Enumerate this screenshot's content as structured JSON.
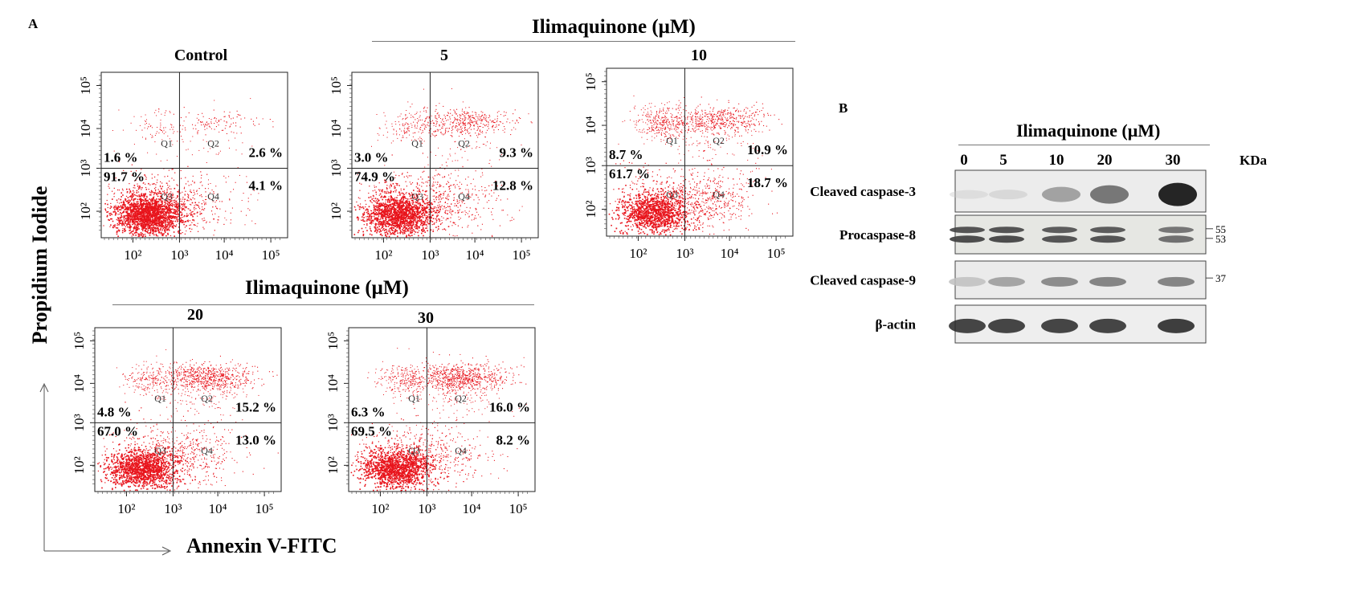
{
  "figure": {
    "panel_a_label": "A",
    "panel_b_label": "B",
    "treatment_label": "Ilimaquinone (μM)",
    "y_axis_title": "Propidium Iodide",
    "x_axis_title": "Annexin V-FITC"
  },
  "flow": {
    "tick_labels": [
      "10²",
      "10³",
      "10⁴",
      "10⁵"
    ],
    "quadrant_names": [
      "Q1",
      "Q2",
      "Q3",
      "Q4"
    ],
    "plots": [
      {
        "title": "Control",
        "q1": "1.6 %",
        "q2": "2.6 %",
        "q3": "91.7 %",
        "q4": "4.1 %"
      },
      {
        "title": "5",
        "q1": "3.0 %",
        "q2": "9.3 %",
        "q3": "74.9 %",
        "q4": "12.8 %"
      },
      {
        "title": "10",
        "q1": "8.7 %",
        "q2": "10.9 %",
        "q3": "61.7 %",
        "q4": "18.7 %"
      },
      {
        "title": "20",
        "q1": "4.8 %",
        "q2": "15.2 %",
        "q3": "67.0 %",
        "q4": "13.0 %"
      },
      {
        "title": "30",
        "q1": "6.3 %",
        "q2": "16.0 %",
        "q3": "69.5 %",
        "q4": "8.2 %"
      }
    ]
  },
  "blot": {
    "doses": [
      "0",
      "5",
      "10",
      "20",
      "30"
    ],
    "kda_label": "KDa",
    "rows": [
      {
        "label": "Cleaved caspase-3",
        "markers": []
      },
      {
        "label": "Procaspase-8",
        "markers": [
          "55",
          "53"
        ]
      },
      {
        "label": "Cleaved caspase-9",
        "markers": [
          "37"
        ]
      },
      {
        "label": "β-actin",
        "markers": []
      }
    ]
  }
}
